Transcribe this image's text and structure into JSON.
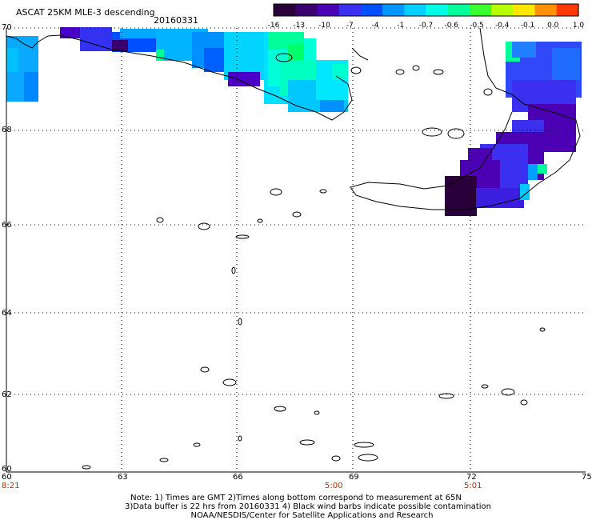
{
  "header": {
    "title": "ASCAT 25KM MLE-3 descending",
    "date": "20160331"
  },
  "colorbar": {
    "labels": [
      "-16",
      "-13",
      "-10",
      "-7",
      "-4",
      "-1",
      "-0.7",
      "-0.6",
      "-0.5",
      "-0.4",
      "-0.1",
      "0.0",
      "1.0"
    ],
    "colors": [
      "#2a003a",
      "#3c006e",
      "#4b00b4",
      "#3b2ff0",
      "#0050ff",
      "#0095ff",
      "#00d0ff",
      "#00ffe8",
      "#00ff9a",
      "#3bff2e",
      "#b8ff00",
      "#ffe800",
      "#ff9000",
      "#ff3a00"
    ]
  },
  "axes": {
    "y_labels": [
      "70",
      "68",
      "66",
      "64",
      "62",
      "60"
    ],
    "x_labels": [
      "60",
      "63",
      "66",
      "69",
      "72",
      "75"
    ],
    "x_times": [
      "8:21",
      "5:00",
      "5:01"
    ]
  },
  "notes": {
    "line1": "Note: 1) Times are GMT 2)Times along bottom correspond to measurement at 65N",
    "line2": "3)Data buffer is 22 hrs from 20160331 4) Black wind barbs indicate possible contamination",
    "line3": "NOAA/NESDIS/Center for Satellite Applications and Research"
  }
}
